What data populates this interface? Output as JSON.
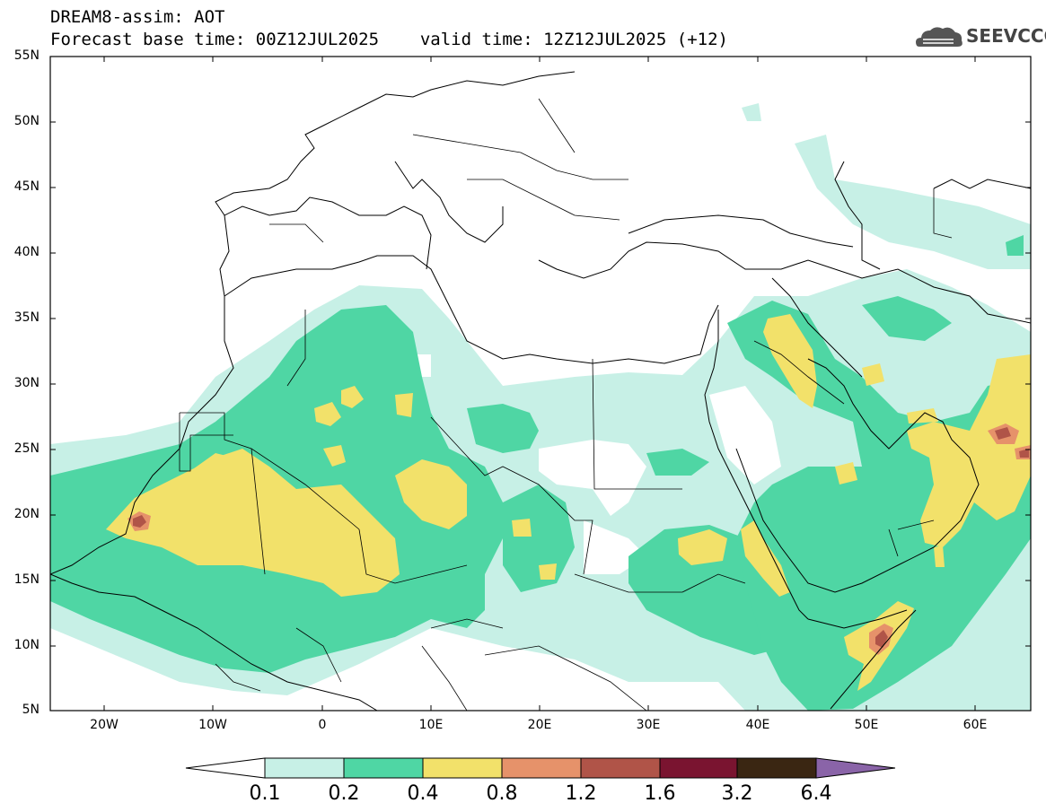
{
  "header": {
    "title_line1": "DREAM8-assim: AOT",
    "base_time": "Forecast base time: 00Z12JUL2025",
    "valid_time": "valid time: 12Z12JUL2025 (+12)"
  },
  "logo": {
    "icon": "cloud-logo-icon",
    "text": "SEEVCCC"
  },
  "map": {
    "lon_range": [
      -25,
      65
    ],
    "lat_range": [
      5,
      55
    ],
    "lat_labels": [
      "55N",
      "50N",
      "45N",
      "40N",
      "35N",
      "30N",
      "25N",
      "20N",
      "15N",
      "10N",
      "5N"
    ],
    "lon_labels": [
      "20W",
      "10W",
      "0",
      "10E",
      "20E",
      "30E",
      "40E",
      "50E",
      "60E"
    ]
  },
  "colorbar": {
    "labels": [
      "0.1",
      "0.2",
      "0.4",
      "0.8",
      "1.2",
      "1.6",
      "3.2",
      "6.4"
    ],
    "colors": [
      "#ffffff",
      "#c7f0e6",
      "#4fd6a4",
      "#f2e16a",
      "#e6926a",
      "#b05448",
      "#7a1430",
      "#3a2612",
      "#8a64a8"
    ]
  }
}
